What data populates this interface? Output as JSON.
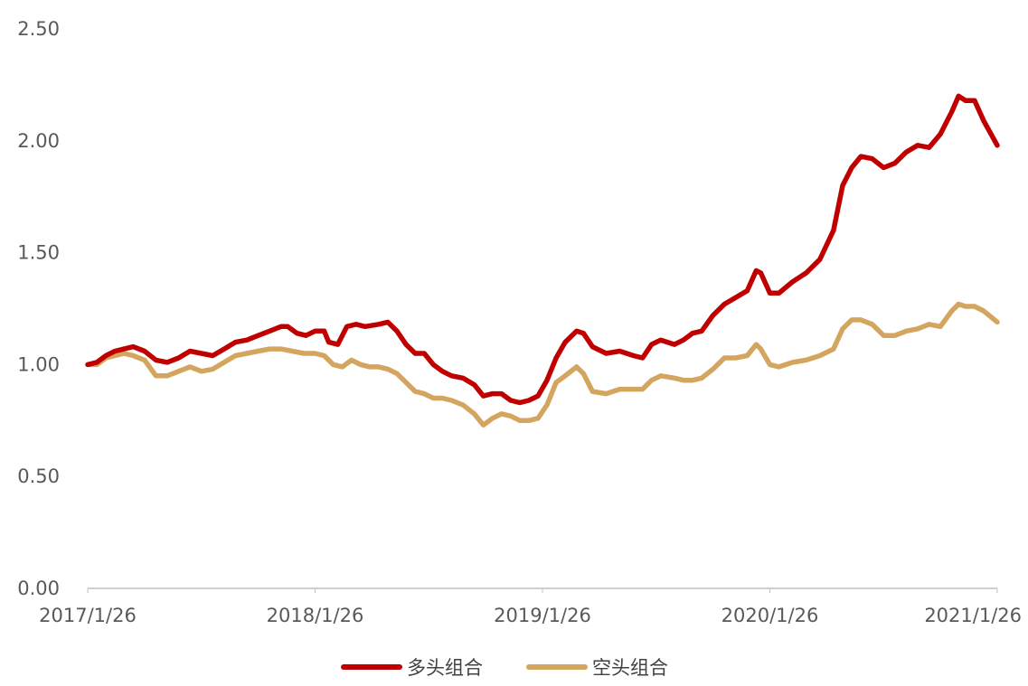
{
  "chart_data": {
    "type": "line",
    "ylim": [
      0,
      2.5
    ],
    "y_ticks": [
      "0.00",
      "0.50",
      "1.00",
      "1.50",
      "2.00",
      "2.50"
    ],
    "x_ticks": [
      {
        "label": "2017/1/26",
        "x": 2017.0
      },
      {
        "label": "2018/1/26",
        "x": 2018.0
      },
      {
        "label": "2019/1/26",
        "x": 2019.0
      },
      {
        "label": "2020/1/26",
        "x": 2020.0
      },
      {
        "label": "2021/1/26",
        "x": 2021.0
      }
    ],
    "grid": false,
    "legend_position": "bottom",
    "series": [
      {
        "name": "多头组合",
        "color": "#C00000",
        "points": [
          [
            2017.0,
            1.0
          ],
          [
            2017.04,
            1.01
          ],
          [
            2017.08,
            1.04
          ],
          [
            2017.12,
            1.06
          ],
          [
            2017.16,
            1.07
          ],
          [
            2017.2,
            1.08
          ],
          [
            2017.25,
            1.06
          ],
          [
            2017.3,
            1.02
          ],
          [
            2017.35,
            1.01
          ],
          [
            2017.4,
            1.03
          ],
          [
            2017.45,
            1.06
          ],
          [
            2017.5,
            1.05
          ],
          [
            2017.55,
            1.04
          ],
          [
            2017.6,
            1.07
          ],
          [
            2017.65,
            1.1
          ],
          [
            2017.7,
            1.11
          ],
          [
            2017.75,
            1.13
          ],
          [
            2017.8,
            1.15
          ],
          [
            2017.85,
            1.17
          ],
          [
            2017.88,
            1.17
          ],
          [
            2017.92,
            1.14
          ],
          [
            2017.96,
            1.13
          ],
          [
            2018.0,
            1.15
          ],
          [
            2018.04,
            1.15
          ],
          [
            2018.06,
            1.1
          ],
          [
            2018.1,
            1.09
          ],
          [
            2018.14,
            1.17
          ],
          [
            2018.18,
            1.18
          ],
          [
            2018.22,
            1.17
          ],
          [
            2018.28,
            1.18
          ],
          [
            2018.32,
            1.19
          ],
          [
            2018.36,
            1.15
          ],
          [
            2018.4,
            1.09
          ],
          [
            2018.44,
            1.05
          ],
          [
            2018.48,
            1.05
          ],
          [
            2018.52,
            1.0
          ],
          [
            2018.56,
            0.97
          ],
          [
            2018.6,
            0.95
          ],
          [
            2018.65,
            0.94
          ],
          [
            2018.7,
            0.91
          ],
          [
            2018.74,
            0.86
          ],
          [
            2018.78,
            0.87
          ],
          [
            2018.82,
            0.87
          ],
          [
            2018.86,
            0.84
          ],
          [
            2018.9,
            0.83
          ],
          [
            2018.94,
            0.84
          ],
          [
            2018.98,
            0.86
          ],
          [
            2019.02,
            0.93
          ],
          [
            2019.06,
            1.03
          ],
          [
            2019.1,
            1.1
          ],
          [
            2019.15,
            1.15
          ],
          [
            2019.18,
            1.14
          ],
          [
            2019.22,
            1.08
          ],
          [
            2019.28,
            1.05
          ],
          [
            2019.34,
            1.06
          ],
          [
            2019.4,
            1.04
          ],
          [
            2019.44,
            1.03
          ],
          [
            2019.48,
            1.09
          ],
          [
            2019.52,
            1.11
          ],
          [
            2019.58,
            1.09
          ],
          [
            2019.62,
            1.11
          ],
          [
            2019.66,
            1.14
          ],
          [
            2019.7,
            1.15
          ],
          [
            2019.75,
            1.22
          ],
          [
            2019.8,
            1.27
          ],
          [
            2019.85,
            1.3
          ],
          [
            2019.9,
            1.33
          ],
          [
            2019.94,
            1.42
          ],
          [
            2019.96,
            1.41
          ],
          [
            2020.0,
            1.32
          ],
          [
            2020.04,
            1.32
          ],
          [
            2020.1,
            1.37
          ],
          [
            2020.16,
            1.41
          ],
          [
            2020.22,
            1.47
          ],
          [
            2020.28,
            1.6
          ],
          [
            2020.32,
            1.8
          ],
          [
            2020.36,
            1.88
          ],
          [
            2020.4,
            1.93
          ],
          [
            2020.45,
            1.92
          ],
          [
            2020.5,
            1.88
          ],
          [
            2020.55,
            1.9
          ],
          [
            2020.6,
            1.95
          ],
          [
            2020.65,
            1.98
          ],
          [
            2020.7,
            1.97
          ],
          [
            2020.75,
            2.03
          ],
          [
            2020.8,
            2.13
          ],
          [
            2020.83,
            2.2
          ],
          [
            2020.86,
            2.18
          ],
          [
            2020.9,
            2.18
          ],
          [
            2020.94,
            2.09
          ],
          [
            2021.0,
            1.98
          ]
        ]
      },
      {
        "name": "空头组合",
        "color": "#D4A55F",
        "points": [
          [
            2017.0,
            1.0
          ],
          [
            2017.04,
            1.0
          ],
          [
            2017.08,
            1.03
          ],
          [
            2017.12,
            1.04
          ],
          [
            2017.16,
            1.05
          ],
          [
            2017.2,
            1.04
          ],
          [
            2017.25,
            1.02
          ],
          [
            2017.3,
            0.95
          ],
          [
            2017.35,
            0.95
          ],
          [
            2017.4,
            0.97
          ],
          [
            2017.45,
            0.99
          ],
          [
            2017.5,
            0.97
          ],
          [
            2017.55,
            0.98
          ],
          [
            2017.6,
            1.01
          ],
          [
            2017.65,
            1.04
          ],
          [
            2017.7,
            1.05
          ],
          [
            2017.75,
            1.06
          ],
          [
            2017.8,
            1.07
          ],
          [
            2017.85,
            1.07
          ],
          [
            2017.9,
            1.06
          ],
          [
            2017.95,
            1.05
          ],
          [
            2018.0,
            1.05
          ],
          [
            2018.04,
            1.04
          ],
          [
            2018.08,
            1.0
          ],
          [
            2018.12,
            0.99
          ],
          [
            2018.16,
            1.02
          ],
          [
            2018.2,
            1.0
          ],
          [
            2018.24,
            0.99
          ],
          [
            2018.28,
            0.99
          ],
          [
            2018.32,
            0.98
          ],
          [
            2018.36,
            0.96
          ],
          [
            2018.4,
            0.92
          ],
          [
            2018.44,
            0.88
          ],
          [
            2018.48,
            0.87
          ],
          [
            2018.52,
            0.85
          ],
          [
            2018.56,
            0.85
          ],
          [
            2018.6,
            0.84
          ],
          [
            2018.65,
            0.82
          ],
          [
            2018.7,
            0.78
          ],
          [
            2018.74,
            0.73
          ],
          [
            2018.78,
            0.76
          ],
          [
            2018.82,
            0.78
          ],
          [
            2018.86,
            0.77
          ],
          [
            2018.9,
            0.75
          ],
          [
            2018.94,
            0.75
          ],
          [
            2018.98,
            0.76
          ],
          [
            2019.02,
            0.82
          ],
          [
            2019.06,
            0.92
          ],
          [
            2019.1,
            0.95
          ],
          [
            2019.15,
            0.99
          ],
          [
            2019.18,
            0.96
          ],
          [
            2019.22,
            0.88
          ],
          [
            2019.28,
            0.87
          ],
          [
            2019.34,
            0.89
          ],
          [
            2019.4,
            0.89
          ],
          [
            2019.44,
            0.89
          ],
          [
            2019.48,
            0.93
          ],
          [
            2019.52,
            0.95
          ],
          [
            2019.58,
            0.94
          ],
          [
            2019.62,
            0.93
          ],
          [
            2019.66,
            0.93
          ],
          [
            2019.7,
            0.94
          ],
          [
            2019.75,
            0.98
          ],
          [
            2019.8,
            1.03
          ],
          [
            2019.85,
            1.03
          ],
          [
            2019.9,
            1.04
          ],
          [
            2019.94,
            1.09
          ],
          [
            2019.96,
            1.07
          ],
          [
            2020.0,
            1.0
          ],
          [
            2020.04,
            0.99
          ],
          [
            2020.1,
            1.01
          ],
          [
            2020.16,
            1.02
          ],
          [
            2020.22,
            1.04
          ],
          [
            2020.28,
            1.07
          ],
          [
            2020.32,
            1.16
          ],
          [
            2020.36,
            1.2
          ],
          [
            2020.4,
            1.2
          ],
          [
            2020.45,
            1.18
          ],
          [
            2020.5,
            1.13
          ],
          [
            2020.55,
            1.13
          ],
          [
            2020.6,
            1.15
          ],
          [
            2020.65,
            1.16
          ],
          [
            2020.7,
            1.18
          ],
          [
            2020.75,
            1.17
          ],
          [
            2020.8,
            1.24
          ],
          [
            2020.83,
            1.27
          ],
          [
            2020.86,
            1.26
          ],
          [
            2020.9,
            1.26
          ],
          [
            2020.94,
            1.24
          ],
          [
            2021.0,
            1.19
          ]
        ]
      }
    ]
  }
}
